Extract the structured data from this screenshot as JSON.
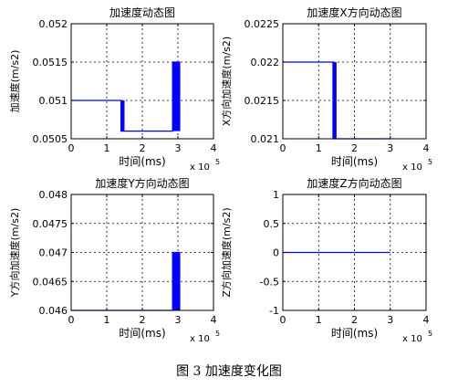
{
  "caption": "图 3  加速度变化图",
  "colors": {
    "series": "#0000ff",
    "axis": "#000000",
    "grid": "#000000"
  },
  "chart_data": [
    {
      "type": "line",
      "title": "加速度动态图",
      "xlabel": "时间(ms)",
      "ylabel": "加速度(m/s2)",
      "x_exponent": "x 10",
      "x_exponent_power": "5",
      "xlim": [
        0,
        4
      ],
      "ylim": [
        0.0505,
        0.052
      ],
      "xticks": [
        "0",
        "1",
        "2",
        "3",
        "4"
      ],
      "yticks": [
        "0.0505",
        "0.051",
        "0.0515",
        "0.052"
      ],
      "grid": true,
      "series": [
        {
          "x": [
            0,
            1.4,
            1.4,
            1.5,
            1.5,
            2.85,
            2.85,
            3.05,
            3.05
          ],
          "y": [
            0.051,
            0.051,
            0.0506,
            0.0506,
            0.0506,
            0.0506,
            0.0515,
            0.0515,
            0.0506
          ]
        }
      ],
      "bands": [
        {
          "x0": 1.4,
          "x1": 1.5,
          "y0": 0.0506,
          "y1": 0.051
        },
        {
          "x0": 2.85,
          "x1": 3.05,
          "y0": 0.0506,
          "y1": 0.0515
        }
      ]
    },
    {
      "type": "line",
      "title": "加速度X方向动态图",
      "xlabel": "时间(ms)",
      "ylabel": "X方向加速度(m/s2)",
      "x_exponent": "x 10",
      "x_exponent_power": "5",
      "xlim": [
        0,
        4
      ],
      "ylim": [
        0.021,
        0.0225
      ],
      "xticks": [
        "0",
        "1",
        "2",
        "3",
        "4"
      ],
      "yticks": [
        "0.021",
        "0.0215",
        "0.022",
        "0.0225"
      ],
      "grid": true,
      "series": [
        {
          "x": [
            0,
            1.4,
            1.4,
            1.5,
            1.5,
            3.0
          ],
          "y": [
            0.022,
            0.022,
            0.021,
            0.021,
            0.021,
            0.021
          ]
        }
      ],
      "bands": [
        {
          "x0": 1.4,
          "x1": 1.5,
          "y0": 0.021,
          "y1": 0.022
        }
      ]
    },
    {
      "type": "line",
      "title": "加速度Y方向动态图",
      "xlabel": "时间(ms)",
      "ylabel": "Y方向加速度(m/s2)",
      "x_exponent": "x 10",
      "x_exponent_power": "5",
      "xlim": [
        0,
        4
      ],
      "ylim": [
        0.046,
        0.048
      ],
      "xticks": [
        "0",
        "1",
        "2",
        "3",
        "4"
      ],
      "yticks": [
        "0.046",
        "0.0465",
        "0.047",
        "0.0475",
        "0.048"
      ],
      "grid": true,
      "series": [
        {
          "x": [
            0,
            2.85,
            2.85,
            3.05,
            3.05
          ],
          "y": [
            0.046,
            0.046,
            0.047,
            0.047,
            0.046
          ]
        }
      ],
      "bands": [
        {
          "x0": 2.85,
          "x1": 3.05,
          "y0": 0.046,
          "y1": 0.047
        }
      ]
    },
    {
      "type": "line",
      "title": "加速度Z方向动态图",
      "xlabel": "时间(ms)",
      "ylabel": "Z方向加速度(m/s2)",
      "x_exponent": "x 10",
      "x_exponent_power": "5",
      "xlim": [
        0,
        4
      ],
      "ylim": [
        -1,
        1
      ],
      "xticks": [
        "0",
        "1",
        "2",
        "3",
        "4"
      ],
      "yticks": [
        "-1",
        "-0.5",
        "0",
        "0.5",
        "1"
      ],
      "grid": true,
      "series": [
        {
          "x": [
            0,
            3.0
          ],
          "y": [
            0,
            0
          ]
        }
      ],
      "bands": []
    }
  ]
}
